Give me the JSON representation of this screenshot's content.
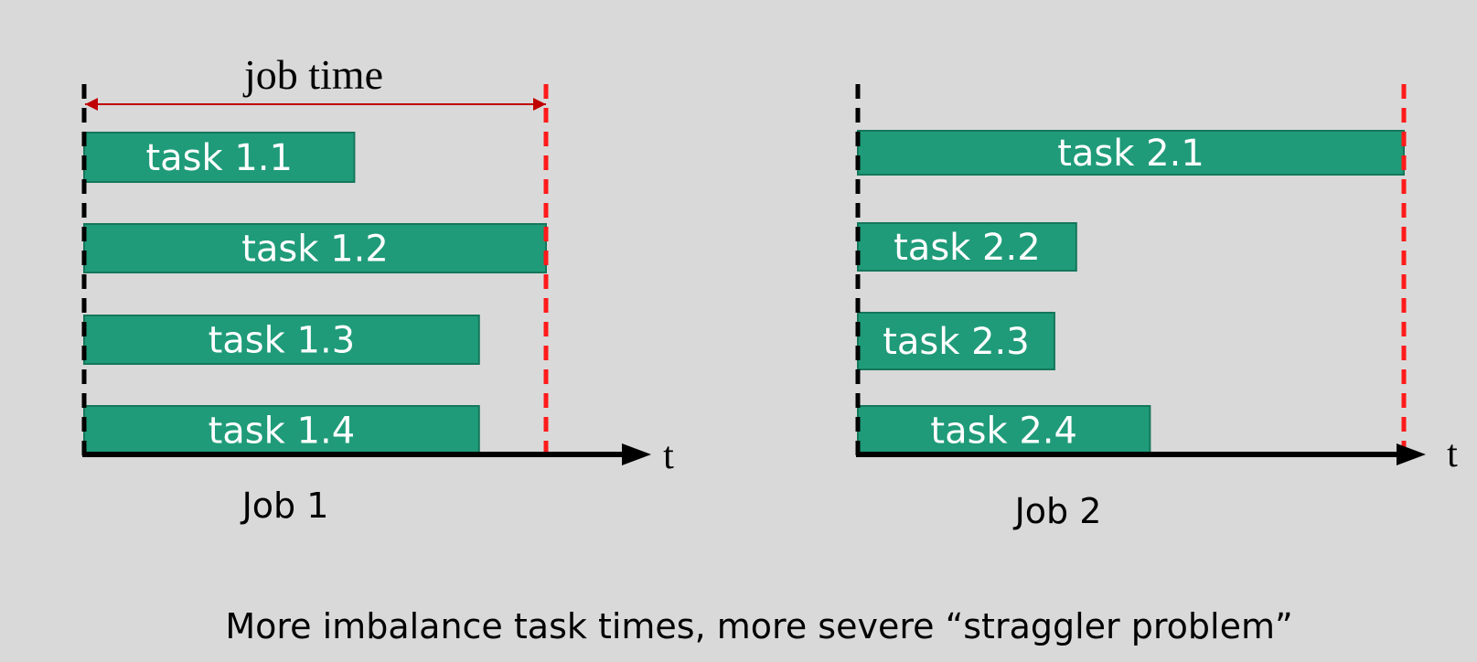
{
  "colors": {
    "background": "#d9d9d9",
    "task_fill": "#1f9b79",
    "task_stroke": "#15775b",
    "start_line": "#000000",
    "end_line": "#ff1a1a",
    "job_time_arrow": "#c00000",
    "axis": "#000000"
  },
  "axis_label": "t",
  "job_time_label": "job time",
  "caption": "More imbalance task times, more severe “straggler problem”",
  "jobs": [
    {
      "name": "Job 1",
      "tasks": [
        {
          "label": "task 1.1",
          "duration": 0.585
        },
        {
          "label": "task 1.2",
          "duration": 1.0
        },
        {
          "label": "task 1.3",
          "duration": 0.855
        },
        {
          "label": "task 1.4",
          "duration": 0.855
        }
      ]
    },
    {
      "name": "Job 2",
      "tasks": [
        {
          "label": "task 2.1",
          "duration": 1.0
        },
        {
          "label": "task 2.2",
          "duration": 0.4
        },
        {
          "label": "task 2.3",
          "duration": 0.36
        },
        {
          "label": "task 2.4",
          "duration": 0.535
        }
      ]
    }
  ]
}
